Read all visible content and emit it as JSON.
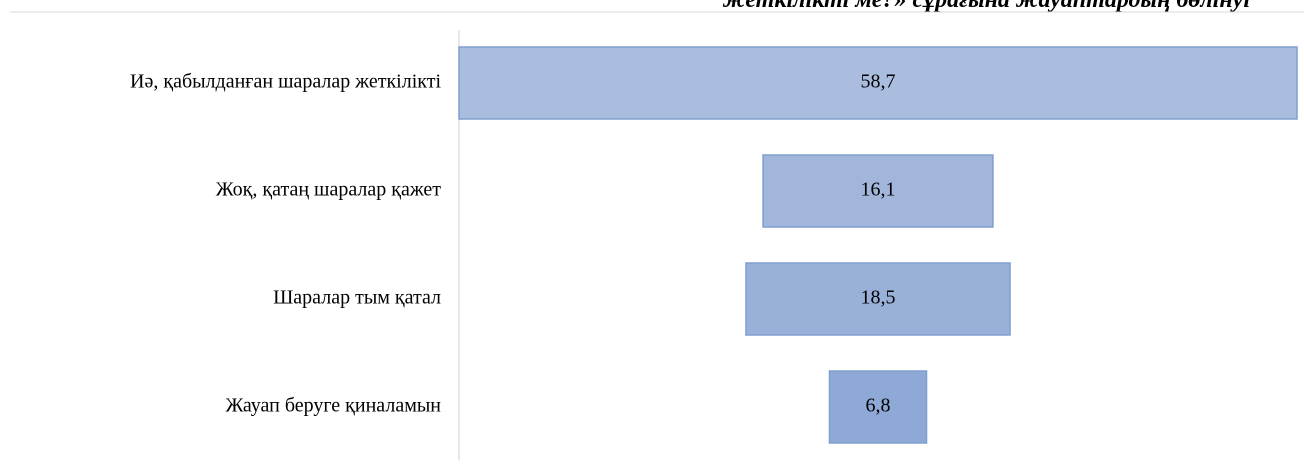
{
  "chart_data": {
    "type": "funnel",
    "title": "жеткілікті ме?» сұрағына жауаптардың бөлінуі",
    "categories": [
      "Иә, қабылданған шаралар жеткілікті",
      "Жоқ, қатаң шаралар қажет",
      "Шаралар тым қатал",
      "Жауап беруге қиналамын"
    ],
    "values": [
      58.7,
      16.1,
      18.5,
      6.8
    ],
    "value_labels": [
      "58,7",
      "16,1",
      "18,5",
      "6,8"
    ],
    "colors": [
      "#aabddf",
      "#a2b6dc",
      "#99b0d9",
      "#8fa9d6"
    ]
  }
}
